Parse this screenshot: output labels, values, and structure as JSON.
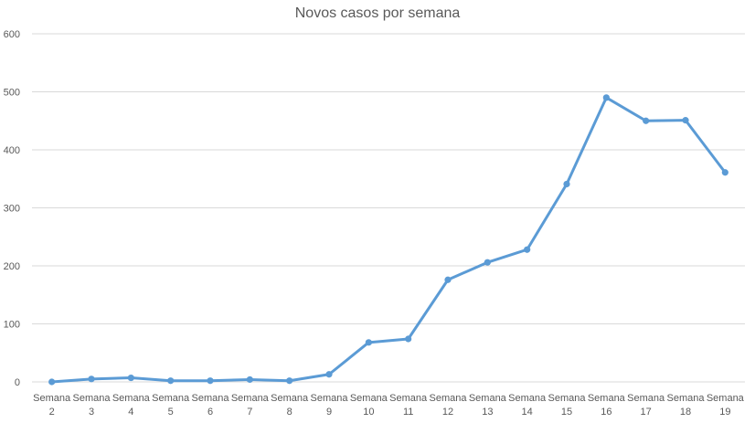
{
  "chart_data": {
    "type": "line",
    "title": "Novos casos por semana",
    "xlabel": "",
    "ylabel": "",
    "categories": [
      [
        "Semana",
        "2"
      ],
      [
        "Semana",
        "3"
      ],
      [
        "Semana",
        "4"
      ],
      [
        "Semana",
        "5"
      ],
      [
        "Semana",
        "6"
      ],
      [
        "Semana",
        "7"
      ],
      [
        "Semana",
        "8"
      ],
      [
        "Semana",
        "9"
      ],
      [
        "Semana",
        "10"
      ],
      [
        "Semana",
        "11"
      ],
      [
        "Semana",
        "12"
      ],
      [
        "Semana",
        "13"
      ],
      [
        "Semana",
        "14"
      ],
      [
        "Semana",
        "15"
      ],
      [
        "Semana",
        "16"
      ],
      [
        "Semana",
        "17"
      ],
      [
        "Semana",
        "18"
      ],
      [
        "Semana",
        "19"
      ]
    ],
    "series": [
      {
        "values": [
          0,
          5,
          7,
          2,
          2,
          4,
          2,
          13,
          68,
          74,
          176,
          206,
          228,
          341,
          490,
          450,
          451,
          361
        ],
        "color": "#5b9bd5"
      }
    ],
    "ylim": [
      0,
      600
    ],
    "yticks": [
      "0",
      "100",
      "200",
      "300",
      "400",
      "500",
      "600"
    ],
    "grid": true,
    "legend": "none"
  }
}
